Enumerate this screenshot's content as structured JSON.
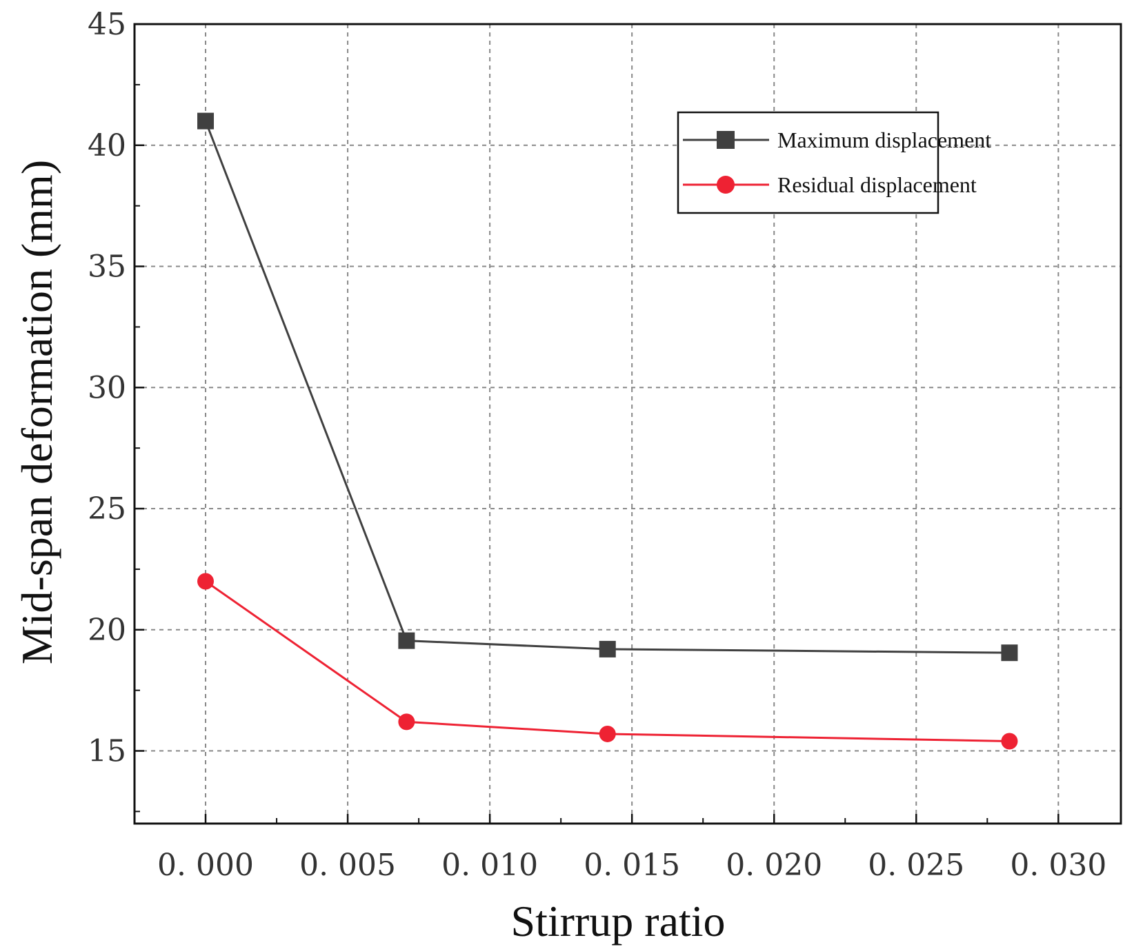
{
  "chart_data": {
    "type": "line",
    "xlabel": "Stirrup ratio",
    "ylabel": "Mid-span deformation (mm)",
    "xlim": [
      -0.0025,
      0.0322
    ],
    "ylim": [
      12,
      45
    ],
    "x_ticks": [
      0.0,
      0.005,
      0.01,
      0.015,
      0.02,
      0.025,
      0.03
    ],
    "x_tick_labels": [
      "0. 000",
      "0. 005",
      "0. 010",
      "0. 015",
      "0. 020",
      "0. 025",
      "0. 030"
    ],
    "y_ticks": [
      15,
      20,
      25,
      30,
      35,
      40,
      45
    ],
    "y_tick_labels": [
      "15",
      "20",
      "25",
      "30",
      "35",
      "40",
      "45"
    ],
    "grid": true,
    "legend_position": "top-right",
    "series": [
      {
        "name": "Maximum displacement",
        "color": "#404040",
        "marker": "square",
        "x": [
          0.0,
          0.00707,
          0.01414,
          0.02828
        ],
        "y": [
          41.0,
          19.55,
          19.2,
          19.05
        ]
      },
      {
        "name": "Residual displacement",
        "color": "#ee2233",
        "marker": "circle",
        "x": [
          0.0,
          0.00707,
          0.01414,
          0.02828
        ],
        "y": [
          22.0,
          16.2,
          15.7,
          15.4
        ]
      }
    ]
  }
}
